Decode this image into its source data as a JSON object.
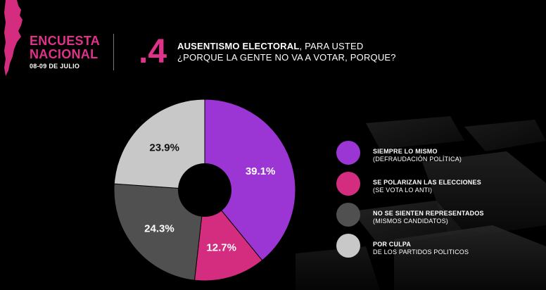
{
  "brand": {
    "line1": "ENCUESTA",
    "line2": "NACIONAL",
    "date": "08-09 DE JULIO"
  },
  "question": {
    "number": ".4",
    "title_bold": "AUSENTISMO ELECTORAL",
    "title_rest": ", PARA USTED",
    "subtitle": "¿PORQUE LA GENTE NO VA A VOTAR, PORQUE?"
  },
  "colors": {
    "accent": "#e0328a",
    "purple": "#9b35d3",
    "magenta": "#d42d80",
    "dark_gray": "#505050",
    "light_gray": "#c8c8c8"
  },
  "chart_data": {
    "type": "pie",
    "donut": true,
    "slices": [
      {
        "label": "SIEMPRE LO MISMO",
        "sublabel": "(DEFRAUDACIÓN POLÍTICA)",
        "value": 39.1,
        "display": "39.1%",
        "color": "#9b35d3"
      },
      {
        "label": "SE POLARIZAN LAS ELECCIONES",
        "sublabel": "(SE VOTA LO ANTI)",
        "value": 12.7,
        "display": "12.7%",
        "color": "#d42d80"
      },
      {
        "label": "NO SE SIENTEN REPRESENTADOS",
        "sublabel": "(MISMOS CANDIDATOS)",
        "value": 24.3,
        "display": "24.3%",
        "color": "#505050"
      },
      {
        "label": "POR CULPA",
        "sublabel": " DE LOS PARTIDOS POLITICOS",
        "value": 23.9,
        "display": "23.9%",
        "color": "#c8c8c8"
      }
    ],
    "legend_position": "right"
  }
}
